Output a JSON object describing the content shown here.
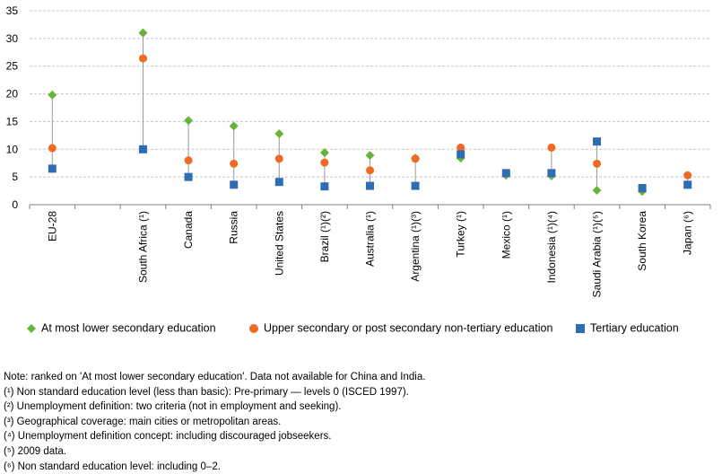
{
  "chart_data": {
    "type": "scatter",
    "categories": [
      "EU-28",
      "",
      "South Africa (¹)",
      "Canada",
      "Russia",
      "United States",
      "Brazil (¹)(²)",
      "Australia (¹)",
      "Argentina (¹)(³)",
      "Turkey (¹)",
      "Mexico (¹)",
      "Indonesia (¹)(⁴)",
      "Saudi Arabia (¹)(⁵)",
      "South Korea",
      "Japan (⁶)"
    ],
    "yticks": [
      "0",
      "5",
      "10",
      "15",
      "20",
      "25",
      "30",
      "35"
    ],
    "ylim": [
      0,
      35
    ],
    "grid": true,
    "legend_position": "bottom",
    "series": [
      {
        "name": "At most lower secondary education",
        "marker": "diamond",
        "color": "#6ab23e",
        "values": [
          19.8,
          null,
          31.0,
          15.2,
          14.2,
          12.8,
          9.4,
          8.9,
          8.4,
          8.4,
          5.3,
          5.2,
          2.6,
          2.4,
          null
        ]
      },
      {
        "name": "Upper secondary or post secondary non-tertiary education",
        "marker": "circle",
        "color": "#f06a24",
        "values": [
          10.2,
          null,
          26.4,
          8.0,
          7.4,
          8.3,
          7.6,
          6.2,
          8.3,
          10.3,
          5.7,
          10.3,
          7.4,
          2.9,
          5.3
        ]
      },
      {
        "name": "Tertiary education",
        "marker": "square",
        "color": "#2e6db4",
        "values": [
          6.5,
          null,
          10.0,
          5.0,
          3.6,
          4.1,
          3.3,
          3.4,
          3.4,
          9.1,
          5.7,
          5.7,
          11.4,
          3.0,
          3.6
        ]
      }
    ]
  },
  "notes": [
    "Note: ranked on 'At most lower secondary education'. Data not available for China and India.",
    "(¹) Non standard education level (less than basic): Pre-primary — levels 0 (ISCED 1997).",
    "(²) Unemployment definition: two criteria (not in employment and seeking).",
    "(³) Geographical coverage: main cities or metropolitan areas.",
    "(⁴) Unemployment definition concept: including discouraged jobseekers.",
    "(⁵) 2009 data.",
    "(⁶) Non standard education level: including 0–2."
  ],
  "colors": {
    "grid": "#c8c8c8",
    "axis": "#7f7f7f",
    "dropline": "#9a9a9a"
  }
}
